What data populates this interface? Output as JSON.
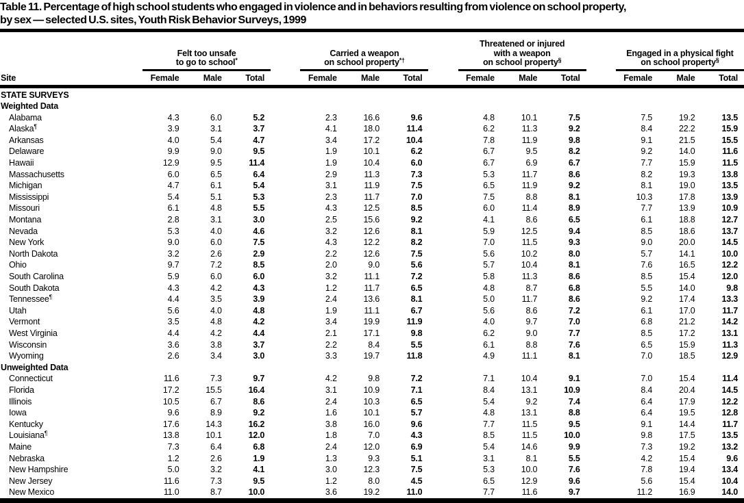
{
  "page": {
    "background": "#ffffff",
    "text_color": "#000000"
  },
  "title": {
    "line1": "Table 11. Percentage of high school students who engaged in violence and in behaviors resulting from violence on school property,",
    "line2": "by sex — selected U.S. sites, Youth Risk Behavior Surveys, 1999"
  },
  "table": {
    "site_column_header": "Site",
    "sub_headers": [
      "Female",
      "Male",
      "Total"
    ],
    "column_groups": [
      {
        "lines": [
          {
            "text": "Felt too unsafe",
            "sup": ""
          },
          {
            "text": "to go to school",
            "sup": "*"
          }
        ]
      },
      {
        "lines": [
          {
            "text": "Carried a weapon",
            "sup": ""
          },
          {
            "text": "on school property",
            "sup": "*†"
          }
        ]
      },
      {
        "lines": [
          {
            "text": "Threatened or injured",
            "sup": ""
          },
          {
            "text": "with a weapon",
            "sup": ""
          },
          {
            "text": "on school property",
            "sup": "§"
          }
        ]
      },
      {
        "lines": [
          {
            "text": "Engaged in a physical fight",
            "sup": ""
          },
          {
            "text": "on school property",
            "sup": "§"
          }
        ]
      }
    ],
    "section_heading": "STATE SURVEYS",
    "subsections": [
      {
        "heading": "Weighted Data",
        "rows": [
          {
            "site": "Alabama",
            "site_sup": "",
            "values": [
              "4.3",
              "6.0",
              "5.2",
              "2.3",
              "16.6",
              "9.6",
              "4.8",
              "10.1",
              "7.5",
              "7.5",
              "19.2",
              "13.5"
            ]
          },
          {
            "site": "Alaska",
            "site_sup": "¶",
            "values": [
              "3.9",
              "3.1",
              "3.7",
              "4.1",
              "18.0",
              "11.4",
              "6.2",
              "11.3",
              "9.2",
              "8.4",
              "22.2",
              "15.9"
            ]
          },
          {
            "site": "Arkansas",
            "site_sup": "",
            "values": [
              "4.0",
              "5.4",
              "4.7",
              "3.4",
              "17.2",
              "10.4",
              "7.8",
              "11.9",
              "9.8",
              "9.1",
              "21.5",
              "15.5"
            ]
          },
          {
            "site": "Delaware",
            "site_sup": "",
            "values": [
              "9.9",
              "9.0",
              "9.5",
              "1.9",
              "10.1",
              "6.2",
              "6.7",
              "9.5",
              "8.2",
              "9.2",
              "14.0",
              "11.6"
            ]
          },
          {
            "site": "Hawaii",
            "site_sup": "",
            "values": [
              "12.9",
              "9.5",
              "11.4",
              "1.9",
              "10.4",
              "6.0",
              "6.7",
              "6.9",
              "6.7",
              "7.7",
              "15.9",
              "11.5"
            ]
          },
          {
            "site": "Massachusetts",
            "site_sup": "",
            "values": [
              "6.0",
              "6.5",
              "6.4",
              "2.9",
              "11.3",
              "7.3",
              "5.3",
              "11.7",
              "8.6",
              "8.2",
              "19.3",
              "13.8"
            ]
          },
          {
            "site": "Michigan",
            "site_sup": "",
            "values": [
              "4.7",
              "6.1",
              "5.4",
              "3.1",
              "11.9",
              "7.5",
              "6.5",
              "11.9",
              "9.2",
              "8.1",
              "19.0",
              "13.5"
            ]
          },
          {
            "site": "Mississippi",
            "site_sup": "",
            "values": [
              "5.4",
              "5.1",
              "5.3",
              "2.3",
              "11.7",
              "7.0",
              "7.5",
              "8.8",
              "8.1",
              "10.3",
              "17.8",
              "13.9"
            ]
          },
          {
            "site": "Missouri",
            "site_sup": "",
            "values": [
              "6.1",
              "4.8",
              "5.5",
              "4.3",
              "12.5",
              "8.5",
              "6.0",
              "11.4",
              "8.9",
              "7.7",
              "13.9",
              "10.9"
            ]
          },
          {
            "site": "Montana",
            "site_sup": "",
            "values": [
              "2.8",
              "3.1",
              "3.0",
              "2.5",
              "15.6",
              "9.2",
              "4.1",
              "8.6",
              "6.5",
              "6.1",
              "18.8",
              "12.7"
            ]
          },
          {
            "site": "Nevada",
            "site_sup": "",
            "values": [
              "5.3",
              "4.0",
              "4.6",
              "3.2",
              "12.6",
              "8.1",
              "5.9",
              "12.5",
              "9.4",
              "8.5",
              "18.6",
              "13.7"
            ]
          },
          {
            "site": "New York",
            "site_sup": "",
            "values": [
              "9.0",
              "6.0",
              "7.5",
              "4.3",
              "12.2",
              "8.2",
              "7.0",
              "11.5",
              "9.3",
              "9.0",
              "20.0",
              "14.5"
            ]
          },
          {
            "site": "North Dakota",
            "site_sup": "",
            "values": [
              "3.2",
              "2.6",
              "2.9",
              "2.2",
              "12.6",
              "7.5",
              "5.6",
              "10.2",
              "8.0",
              "5.7",
              "14.1",
              "10.0"
            ]
          },
          {
            "site": "Ohio",
            "site_sup": "",
            "values": [
              "9.7",
              "7.2",
              "8.5",
              "2.0",
              "9.0",
              "5.6",
              "5.7",
              "10.4",
              "8.1",
              "7.6",
              "16.5",
              "12.2"
            ]
          },
          {
            "site": "South Carolina",
            "site_sup": "",
            "values": [
              "5.9",
              "6.0",
              "6.0",
              "3.2",
              "11.1",
              "7.2",
              "5.8",
              "11.3",
              "8.6",
              "8.5",
              "15.4",
              "12.0"
            ]
          },
          {
            "site": "South Dakota",
            "site_sup": "",
            "values": [
              "4.3",
              "4.2",
              "4.3",
              "1.2",
              "11.7",
              "6.5",
              "4.8",
              "8.7",
              "6.8",
              "5.5",
              "14.0",
              "9.8"
            ]
          },
          {
            "site": "Tennessee",
            "site_sup": "¶",
            "values": [
              "4.4",
              "3.5",
              "3.9",
              "2.4",
              "13.6",
              "8.1",
              "5.0",
              "11.7",
              "8.6",
              "9.2",
              "17.4",
              "13.3"
            ]
          },
          {
            "site": "Utah",
            "site_sup": "",
            "values": [
              "5.6",
              "4.0",
              "4.8",
              "1.9",
              "11.1",
              "6.7",
              "5.6",
              "8.6",
              "7.2",
              "6.1",
              "17.0",
              "11.7"
            ]
          },
          {
            "site": "Vermont",
            "site_sup": "",
            "values": [
              "3.5",
              "4.8",
              "4.2",
              "3.4",
              "19.9",
              "11.9",
              "4.0",
              "9.7",
              "7.0",
              "6.8",
              "21.2",
              "14.2"
            ]
          },
          {
            "site": "West Virginia",
            "site_sup": "",
            "values": [
              "4.4",
              "4.2",
              "4.4",
              "2.1",
              "17.1",
              "9.8",
              "6.2",
              "9.0",
              "7.7",
              "8.5",
              "17.2",
              "13.1"
            ]
          },
          {
            "site": "Wisconsin",
            "site_sup": "",
            "values": [
              "3.6",
              "3.8",
              "3.7",
              "2.2",
              "8.4",
              "5.5",
              "6.1",
              "8.8",
              "7.6",
              "6.5",
              "15.9",
              "11.3"
            ]
          },
          {
            "site": "Wyoming",
            "site_sup": "",
            "values": [
              "2.6",
              "3.4",
              "3.0",
              "3.3",
              "19.7",
              "11.8",
              "4.9",
              "11.1",
              "8.1",
              "7.0",
              "18.5",
              "12.9"
            ]
          }
        ]
      },
      {
        "heading": "Unweighted Data",
        "rows": [
          {
            "site": "Connecticut",
            "site_sup": "",
            "values": [
              "11.6",
              "7.3",
              "9.7",
              "4.2",
              "9.8",
              "7.2",
              "7.1",
              "10.4",
              "9.1",
              "7.0",
              "15.4",
              "11.4"
            ]
          },
          {
            "site": "Florida",
            "site_sup": "",
            "values": [
              "17.2",
              "15.5",
              "16.4",
              "3.1",
              "10.9",
              "7.1",
              "8.4",
              "13.1",
              "10.9",
              "8.4",
              "20.4",
              "14.5"
            ]
          },
          {
            "site": "Illinois",
            "site_sup": "",
            "values": [
              "10.5",
              "6.7",
              "8.6",
              "2.4",
              "10.3",
              "6.5",
              "5.4",
              "9.2",
              "7.4",
              "6.4",
              "17.9",
              "12.2"
            ]
          },
          {
            "site": "Iowa",
            "site_sup": "",
            "values": [
              "9.6",
              "8.9",
              "9.2",
              "1.6",
              "10.1",
              "5.7",
              "4.8",
              "13.1",
              "8.8",
              "6.4",
              "19.5",
              "12.8"
            ]
          },
          {
            "site": "Kentucky",
            "site_sup": "",
            "values": [
              "17.6",
              "14.3",
              "16.2",
              "3.8",
              "16.0",
              "9.6",
              "7.7",
              "11.5",
              "9.5",
              "9.1",
              "14.4",
              "11.7"
            ]
          },
          {
            "site": "Louisiana",
            "site_sup": "¶",
            "values": [
              "13.8",
              "10.1",
              "12.0",
              "1.8",
              "7.0",
              "4.3",
              "8.5",
              "11.5",
              "10.0",
              "9.8",
              "17.5",
              "13.5"
            ]
          },
          {
            "site": "Maine",
            "site_sup": "",
            "values": [
              "7.3",
              "6.4",
              "6.8",
              "2.4",
              "12.0",
              "6.9",
              "5.4",
              "14.6",
              "9.9",
              "7.3",
              "19.2",
              "13.2"
            ]
          },
          {
            "site": "Nebraska",
            "site_sup": "",
            "values": [
              "1.2",
              "2.6",
              "1.9",
              "1.3",
              "9.3",
              "5.1",
              "3.1",
              "8.1",
              "5.5",
              "4.2",
              "15.4",
              "9.6"
            ]
          },
          {
            "site": "New Hampshire",
            "site_sup": "",
            "values": [
              "5.0",
              "3.2",
              "4.1",
              "3.0",
              "12.3",
              "7.5",
              "5.3",
              "10.0",
              "7.6",
              "7.8",
              "19.4",
              "13.4"
            ]
          },
          {
            "site": "New Jersey",
            "site_sup": "",
            "values": [
              "11.6",
              "7.3",
              "9.5",
              "1.2",
              "8.0",
              "4.5",
              "6.5",
              "12.9",
              "9.6",
              "5.6",
              "15.4",
              "10.4"
            ]
          },
          {
            "site": "New Mexico",
            "site_sup": "",
            "values": [
              "11.0",
              "8.7",
              "10.0",
              "3.6",
              "19.2",
              "11.0",
              "7.7",
              "11.6",
              "9.7",
              "11.2",
              "16.9",
              "14.0"
            ]
          }
        ]
      }
    ]
  }
}
